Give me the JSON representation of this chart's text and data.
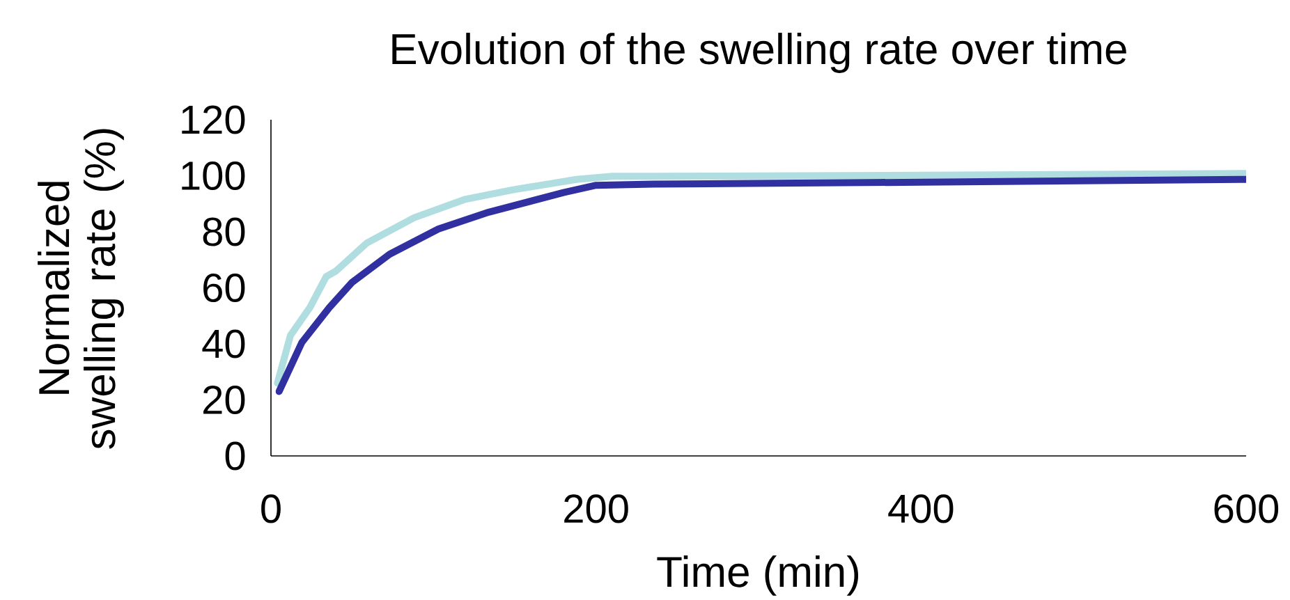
{
  "chart_data": {
    "type": "line",
    "title": "Evolution of the swelling rate over time",
    "xlabel": "Time (min)",
    "ylabel": "Normalized swelling rate (%)",
    "xlim": [
      0,
      600
    ],
    "xticks": [
      0,
      200,
      400,
      600
    ],
    "ylim": [
      0,
      120
    ],
    "yticks": [
      0,
      20,
      40,
      60,
      80,
      100,
      120
    ],
    "grid": false,
    "marker": "none",
    "line_style": "solid",
    "series": [
      {
        "color": "#b0dde0",
        "x": [
          4,
          12,
          24,
          34,
          40,
          59,
          88,
          119,
          149,
          188,
          210,
          235,
          400,
          600
        ],
        "values": [
          26,
          43,
          53,
          64,
          66,
          76,
          85,
          91.5,
          95,
          98.7,
          99.8,
          99.8,
          100.2,
          100.8
        ]
      },
      {
        "color": "#3030a0",
        "x": [
          5,
          19,
          36,
          50,
          73,
          103,
          134,
          180,
          200,
          235,
          400,
          600
        ],
        "values": [
          23,
          40.5,
          53,
          62,
          72,
          81,
          87,
          94,
          96.6,
          97,
          97.7,
          98.7
        ]
      }
    ]
  }
}
